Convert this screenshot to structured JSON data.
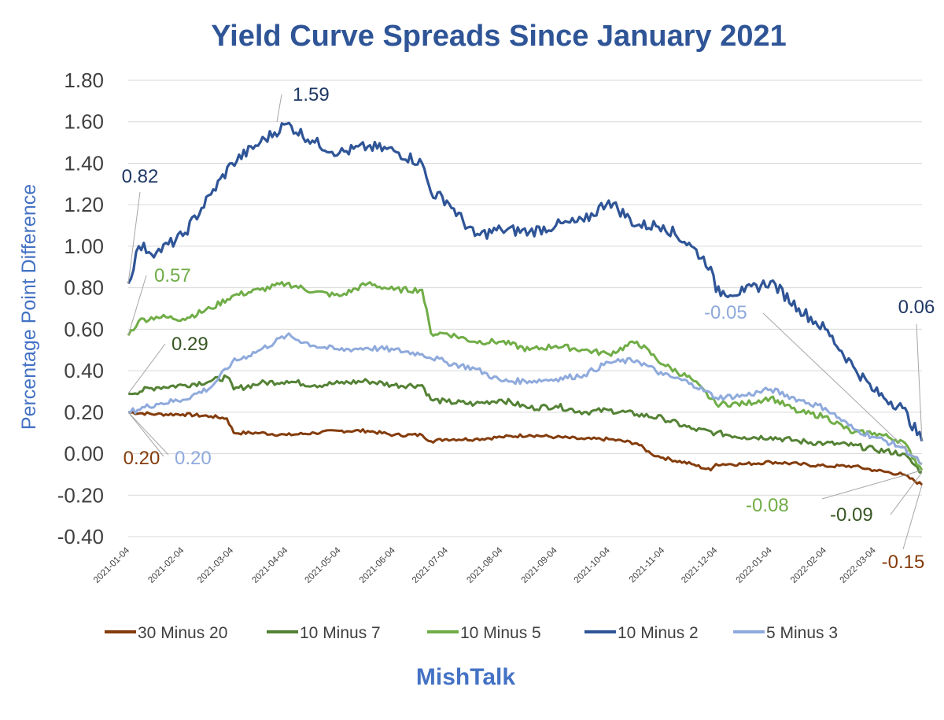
{
  "chart_data": {
    "type": "line",
    "title": "Yield Curve Spreads Since January 2021",
    "ylabel": "Percentage Point Difference",
    "xlabel": "",
    "ylim": [
      -0.4,
      1.8
    ],
    "yticks": [
      "1.80",
      "1.60",
      "1.40",
      "1.20",
      "1.00",
      "0.80",
      "0.60",
      "0.40",
      "0.20",
      "0.00",
      "-0.20",
      "-0.40"
    ],
    "x_tick_labels": [
      "2021-01-04",
      "2021-02-04",
      "2021-03-04",
      "2021-04-04",
      "2021-05-04",
      "2021-06-04",
      "2021-07-04",
      "2021-08-04",
      "2021-09-04",
      "2021-10-04",
      "2021-11-04",
      "2021-12-04",
      "2022-01-04",
      "2022-02-04",
      "2022-03-04"
    ],
    "x_range": [
      "2021-01-04",
      "2022-03-31"
    ],
    "grid": "horizontal",
    "legend_position": "bottom",
    "source": "MishTalk",
    "series": [
      {
        "name": "30 Minus 20",
        "color": "#843c0c",
        "dates": [
          "2021-01-04",
          "2021-01-20",
          "2021-02-04",
          "2021-02-20",
          "2021-03-01",
          "2021-03-05",
          "2021-03-20",
          "2021-04-04",
          "2021-04-20",
          "2021-05-04",
          "2021-05-20",
          "2021-06-04",
          "2021-06-20",
          "2021-06-25",
          "2021-07-04",
          "2021-07-20",
          "2021-08-04",
          "2021-08-20",
          "2021-09-04",
          "2021-09-20",
          "2021-10-04",
          "2021-10-20",
          "2021-10-28",
          "2021-11-04",
          "2021-11-20",
          "2021-12-01",
          "2021-12-04",
          "2021-12-20",
          "2022-01-04",
          "2022-01-20",
          "2022-02-04",
          "2022-02-20",
          "2022-03-04",
          "2022-03-20",
          "2022-03-31"
        ],
        "values": [
          0.2,
          0.19,
          0.19,
          0.18,
          0.17,
          0.1,
          0.1,
          0.09,
          0.1,
          0.11,
          0.11,
          0.09,
          0.09,
          0.06,
          0.07,
          0.07,
          0.08,
          0.09,
          0.08,
          0.07,
          0.07,
          0.05,
          0.0,
          -0.02,
          -0.05,
          -0.08,
          -0.05,
          -0.05,
          -0.04,
          -0.05,
          -0.06,
          -0.06,
          -0.08,
          -0.1,
          -0.15
        ],
        "start_label": "0.20",
        "end_label": "-0.15"
      },
      {
        "name": "10 Minus 7",
        "color": "#548235",
        "dates": [
          "2021-01-04",
          "2021-01-20",
          "2021-02-04",
          "2021-02-20",
          "2021-03-01",
          "2021-03-05",
          "2021-03-20",
          "2021-04-04",
          "2021-04-20",
          "2021-05-04",
          "2021-05-20",
          "2021-06-04",
          "2021-06-20",
          "2021-06-25",
          "2021-07-04",
          "2021-07-20",
          "2021-08-04",
          "2021-08-20",
          "2021-09-04",
          "2021-09-20",
          "2021-10-04",
          "2021-10-20",
          "2021-11-04",
          "2021-11-20",
          "2021-12-04",
          "2021-12-20",
          "2022-01-04",
          "2022-01-20",
          "2022-02-04",
          "2022-02-20",
          "2022-03-04",
          "2022-03-20",
          "2022-03-31"
        ],
        "values": [
          0.29,
          0.32,
          0.33,
          0.35,
          0.37,
          0.31,
          0.34,
          0.35,
          0.33,
          0.34,
          0.35,
          0.33,
          0.33,
          0.26,
          0.25,
          0.24,
          0.26,
          0.22,
          0.23,
          0.2,
          0.21,
          0.19,
          0.17,
          0.12,
          0.1,
          0.08,
          0.08,
          0.06,
          0.05,
          0.04,
          0.02,
          0.0,
          -0.09
        ],
        "start_label": "0.29",
        "end_label": "-0.09"
      },
      {
        "name": "10 Minus 5",
        "color": "#70ad47",
        "dates": [
          "2021-01-04",
          "2021-01-10",
          "2021-01-20",
          "2021-02-04",
          "2021-02-20",
          "2021-03-04",
          "2021-03-20",
          "2021-04-04",
          "2021-04-20",
          "2021-05-04",
          "2021-05-20",
          "2021-06-04",
          "2021-06-20",
          "2021-06-25",
          "2021-07-04",
          "2021-07-20",
          "2021-08-04",
          "2021-08-20",
          "2021-09-04",
          "2021-09-20",
          "2021-10-04",
          "2021-10-20",
          "2021-11-04",
          "2021-11-20",
          "2021-12-04",
          "2021-12-20",
          "2022-01-04",
          "2022-01-20",
          "2022-02-04",
          "2022-02-20",
          "2022-03-04",
          "2022-03-20",
          "2022-03-31"
        ],
        "values": [
          0.57,
          0.64,
          0.66,
          0.65,
          0.7,
          0.76,
          0.79,
          0.82,
          0.78,
          0.76,
          0.82,
          0.79,
          0.79,
          0.58,
          0.58,
          0.54,
          0.54,
          0.5,
          0.52,
          0.5,
          0.48,
          0.54,
          0.43,
          0.36,
          0.24,
          0.24,
          0.27,
          0.2,
          0.18,
          0.1,
          0.1,
          0.06,
          -0.08
        ],
        "start_label": "0.57",
        "end_label": "-0.08"
      },
      {
        "name": "10 Minus 2",
        "color": "#2f5597",
        "dates": [
          "2021-01-04",
          "2021-01-10",
          "2021-01-20",
          "2021-02-04",
          "2021-02-20",
          "2021-03-04",
          "2021-03-20",
          "2021-04-04",
          "2021-04-20",
          "2021-05-04",
          "2021-05-20",
          "2021-06-04",
          "2021-06-20",
          "2021-06-25",
          "2021-07-04",
          "2021-07-20",
          "2021-08-04",
          "2021-08-20",
          "2021-09-04",
          "2021-09-20",
          "2021-10-04",
          "2021-10-20",
          "2021-11-04",
          "2021-11-20",
          "2021-12-01",
          "2021-12-04",
          "2021-12-20",
          "2022-01-04",
          "2022-01-20",
          "2022-02-04",
          "2022-02-20",
          "2022-03-04",
          "2022-03-20",
          "2022-03-31"
        ],
        "values": [
          0.82,
          1.0,
          0.97,
          1.05,
          1.25,
          1.4,
          1.5,
          1.59,
          1.5,
          1.45,
          1.48,
          1.46,
          1.4,
          1.26,
          1.22,
          1.05,
          1.08,
          1.07,
          1.1,
          1.12,
          1.22,
          1.1,
          1.1,
          1.0,
          0.9,
          0.78,
          0.78,
          0.83,
          0.7,
          0.6,
          0.42,
          0.3,
          0.22,
          0.06
        ],
        "start_label": "0.82",
        "peak_label": "1.59",
        "end_label": "0.06"
      },
      {
        "name": "5 Minus 3",
        "color": "#8faadc",
        "dates": [
          "2021-01-04",
          "2021-01-20",
          "2021-02-04",
          "2021-02-20",
          "2021-03-04",
          "2021-03-20",
          "2021-04-04",
          "2021-04-20",
          "2021-05-04",
          "2021-05-20",
          "2021-06-04",
          "2021-06-20",
          "2021-07-04",
          "2021-07-20",
          "2021-08-04",
          "2021-08-20",
          "2021-09-04",
          "2021-09-20",
          "2021-10-04",
          "2021-10-20",
          "2021-11-04",
          "2021-11-20",
          "2021-12-04",
          "2021-12-20",
          "2022-01-04",
          "2022-01-20",
          "2022-02-04",
          "2022-02-20",
          "2022-03-04",
          "2022-03-20",
          "2022-03-31"
        ],
        "values": [
          0.2,
          0.24,
          0.26,
          0.32,
          0.44,
          0.5,
          0.57,
          0.52,
          0.5,
          0.51,
          0.5,
          0.48,
          0.44,
          0.41,
          0.35,
          0.35,
          0.36,
          0.38,
          0.44,
          0.45,
          0.38,
          0.34,
          0.27,
          0.28,
          0.31,
          0.26,
          0.22,
          0.12,
          0.08,
          0.03,
          -0.05
        ],
        "start_label": "0.20",
        "end_label": "-0.05"
      }
    ]
  }
}
